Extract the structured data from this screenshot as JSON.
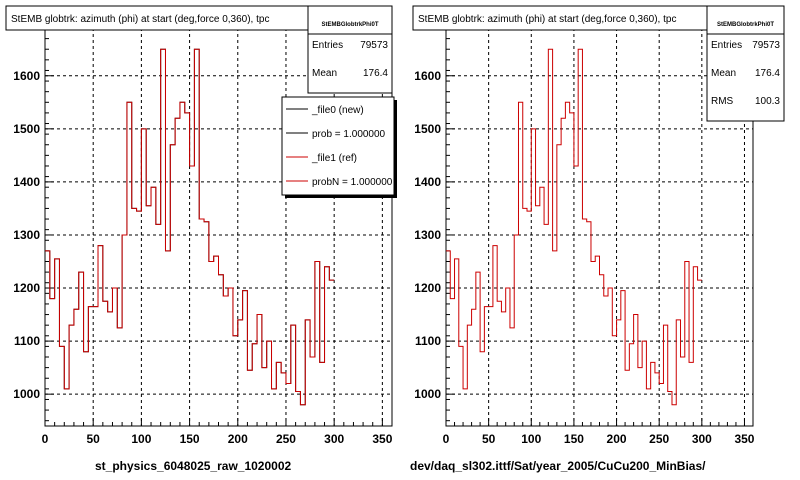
{
  "panels": [
    {
      "title": "StEMB globtrk: azimuth (phi) at start (deg,force 0,360), tpc",
      "stats": {
        "name": "StEMBGlobtrkPhi0T",
        "rows": [
          {
            "label": "Entries",
            "value": "79573"
          },
          {
            "label": "Mean",
            "value": "176.4"
          }
        ]
      },
      "legend": {
        "entries": [
          {
            "label": "_file0 (new)",
            "color": "#000000"
          },
          {
            "label": "prob = 1.000000",
            "color": "#000000"
          },
          {
            "label": "_file1 (ref)",
            "color": "#cc0000"
          },
          {
            "label": "probN = 1.000000",
            "color": "#cc0000"
          }
        ]
      },
      "footer": "st_physics_6048025_raw_1020002"
    },
    {
      "title": "StEMB globtrk: azimuth (phi) at start (deg,force 0,360), tpc",
      "stats": {
        "name": "StEMBGlobtrkPhi0T",
        "rows": [
          {
            "label": "Entries",
            "value": "79573"
          },
          {
            "label": "Mean",
            "value": "176.4"
          },
          {
            "label": "RMS",
            "value": "100.3"
          }
        ]
      },
      "legend": null,
      "footer": "dev/daq_sl302.ittf/Sat/year_2005/CuCu200_MinBias/"
    }
  ],
  "chart_data": [
    {
      "type": "line",
      "title": "StEMB globtrk: azimuth (phi) at start (deg,force 0,360), tpc",
      "xlabel": "st_physics_6048025_raw_1020002",
      "ylabel": "",
      "xlim": [
        0,
        360
      ],
      "ylim": [
        940,
        1690
      ],
      "xticks": [
        0,
        50,
        100,
        150,
        200,
        250,
        300,
        350
      ],
      "yticks": [
        1000,
        1100,
        1200,
        1300,
        1400,
        1500,
        1600
      ],
      "grid": true,
      "legend_position": "top-right",
      "bin_width": 5,
      "series": [
        {
          "name": "_file0 (new)",
          "color": "#000000",
          "values": [
            1270,
            1180,
            1255,
            1090,
            1010,
            1130,
            1160,
            1230,
            1080,
            1165,
            1165,
            1280,
            1175,
            1155,
            1200,
            1125,
            1300,
            1550,
            1350,
            1345,
            1500,
            1355,
            1390,
            1320,
            1650,
            1270,
            1470,
            1520,
            1550,
            1530,
            1430,
            1650,
            1330,
            1325,
            1250,
            1260,
            1225,
            1185,
            1200,
            1110,
            1140,
            1195,
            1045,
            1095,
            1150,
            1050,
            1100,
            1010,
            1060,
            1040,
            1020,
            1130,
            1005,
            980,
            1140,
            1070,
            1250,
            1060,
            1240,
            1215
          ]
        },
        {
          "name": "_file1 (ref)",
          "color": "#cc0000",
          "values": [
            1270,
            1180,
            1255,
            1090,
            1010,
            1130,
            1160,
            1230,
            1080,
            1165,
            1165,
            1280,
            1175,
            1155,
            1200,
            1125,
            1300,
            1550,
            1350,
            1345,
            1500,
            1355,
            1390,
            1320,
            1650,
            1270,
            1470,
            1520,
            1550,
            1530,
            1430,
            1650,
            1330,
            1325,
            1250,
            1260,
            1225,
            1185,
            1200,
            1110,
            1140,
            1195,
            1045,
            1095,
            1150,
            1050,
            1100,
            1010,
            1060,
            1040,
            1020,
            1130,
            1005,
            980,
            1140,
            1070,
            1250,
            1060,
            1240,
            1215
          ]
        }
      ]
    },
    {
      "type": "line",
      "title": "StEMB globtrk: azimuth (phi) at start (deg,force 0,360), tpc",
      "xlabel": "dev/daq_sl302.ittf/Sat/year_2005/CuCu200_MinBias/",
      "ylabel": "",
      "xlim": [
        0,
        360
      ],
      "ylim": [
        940,
        1690
      ],
      "xticks": [
        0,
        50,
        100,
        150,
        200,
        250,
        300,
        350
      ],
      "yticks": [
        1000,
        1100,
        1200,
        1300,
        1400,
        1500,
        1600
      ],
      "grid": true,
      "bin_width": 5,
      "series": [
        {
          "name": "",
          "color": "#cc0000",
          "values": [
            1270,
            1180,
            1255,
            1090,
            1010,
            1130,
            1160,
            1230,
            1080,
            1165,
            1165,
            1280,
            1175,
            1155,
            1200,
            1125,
            1300,
            1550,
            1350,
            1345,
            1500,
            1355,
            1390,
            1320,
            1650,
            1270,
            1470,
            1520,
            1550,
            1530,
            1430,
            1650,
            1330,
            1325,
            1250,
            1260,
            1225,
            1185,
            1200,
            1110,
            1140,
            1195,
            1045,
            1095,
            1150,
            1050,
            1100,
            1010,
            1060,
            1040,
            1020,
            1130,
            1005,
            980,
            1140,
            1070,
            1250,
            1060,
            1240,
            1215
          ]
        }
      ]
    }
  ]
}
